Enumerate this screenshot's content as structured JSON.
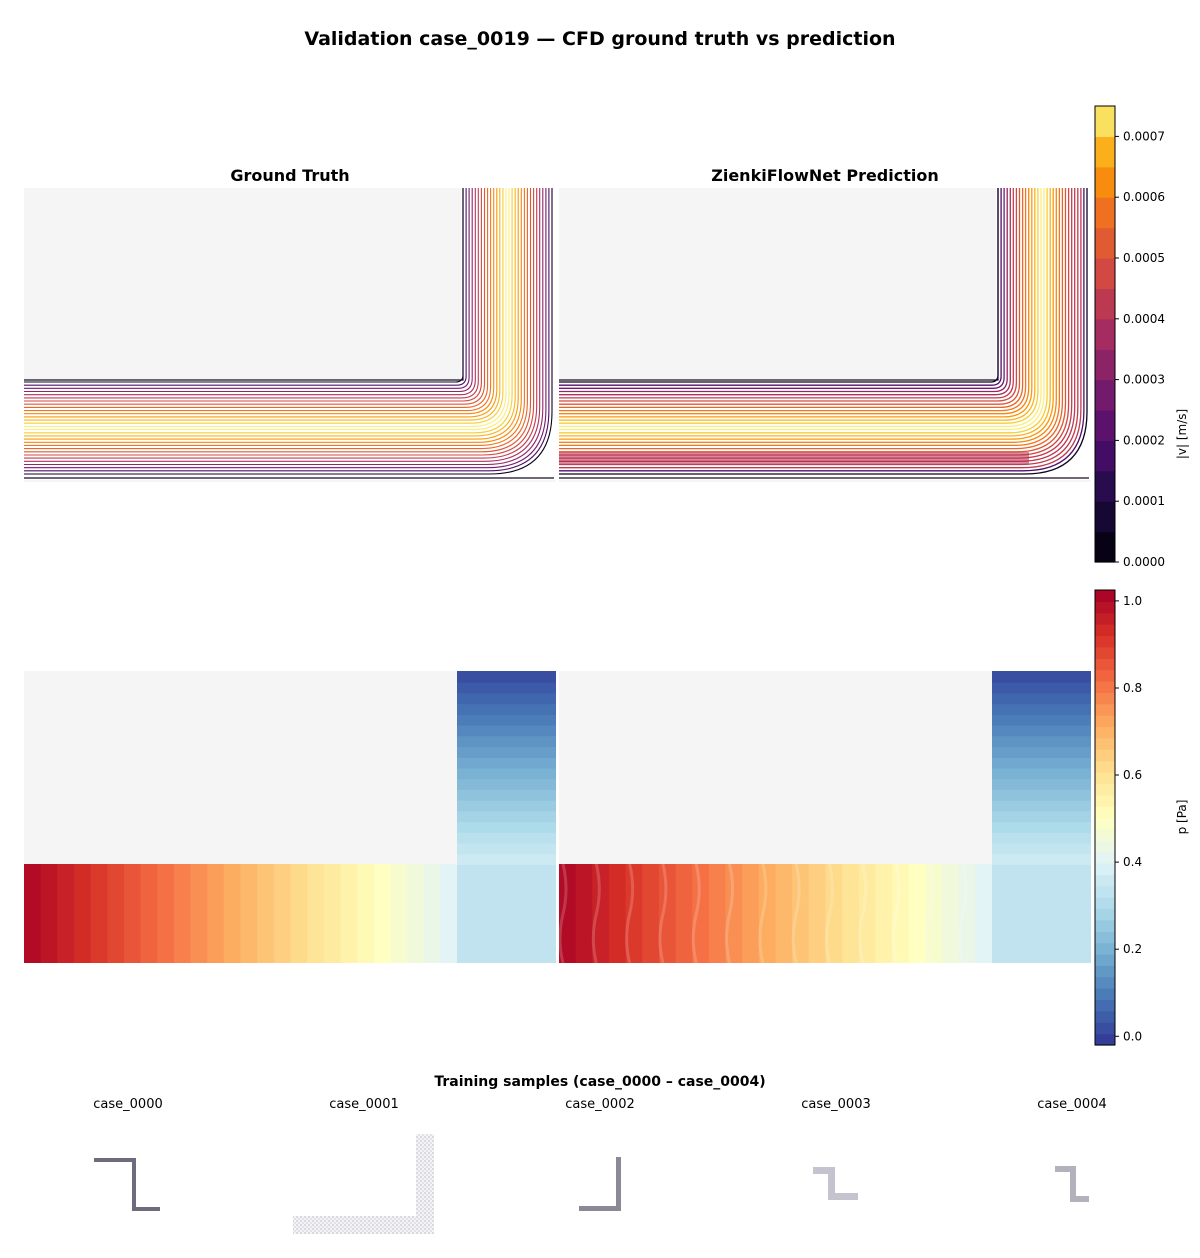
{
  "figure": {
    "title": "Validation case_0019 — CFD ground truth vs prediction"
  },
  "chart_data": [
    {
      "type": "streamplot",
      "panel": "velocity-ground-truth",
      "title": "Ground Truth",
      "geometry": "L-shaped channel: horizontal inlet from left, bend at right, outlet upward"
    },
    {
      "type": "streamplot",
      "panel": "velocity-prediction",
      "title": "ZienkiFlowNet Prediction",
      "geometry": "L-shaped channel: horizontal inlet from left, bend at right, outlet upward"
    },
    {
      "type": "heatmap",
      "panel": "pressure-ground-truth",
      "title": "",
      "geometry": "L-shaped channel",
      "note": "pressure falls from ~1.0 Pa at the left inlet to ~0.0 Pa at the top outlet"
    },
    {
      "type": "heatmap",
      "panel": "pressure-prediction",
      "title": "",
      "geometry": "L-shaped channel",
      "note": "pressure falls from ~1.0 Pa at the left inlet to ~0.0 Pa at the top outlet"
    },
    {
      "type": "colorbar",
      "label": "|v| [m/s]",
      "colormap": "inferno",
      "range": [
        0,
        0.00075
      ],
      "ticks": [
        "0.0000",
        "0.0001",
        "0.0002",
        "0.0003",
        "0.0004",
        "0.0005",
        "0.0006",
        "0.0007"
      ],
      "tick_values": [
        0,
        0.0001,
        0.0002,
        0.0003,
        0.0004,
        0.0005,
        0.0006,
        0.0007
      ]
    },
    {
      "type": "colorbar",
      "label": "p [Pa]",
      "colormap": "RdYlBu_r",
      "range": [
        -0.02,
        1.025
      ],
      "ticks": [
        "0.0",
        "0.2",
        "0.4",
        "0.6",
        "0.8",
        "1.0"
      ],
      "tick_values": [
        0.0,
        0.2,
        0.4,
        0.6,
        0.8,
        1.0
      ]
    }
  ],
  "training": {
    "title": "Training samples (case_0000 – case_0004)",
    "samples": [
      {
        "label": "case_0000",
        "shape": "z-step"
      },
      {
        "label": "case_0001",
        "shape": "l-wide"
      },
      {
        "label": "case_0002",
        "shape": "l-narrow"
      },
      {
        "label": "case_0003",
        "shape": "z-small"
      },
      {
        "label": "case_0004",
        "shape": "bracket"
      }
    ]
  },
  "colors": {
    "background_panel": "#f5f5f5",
    "streamline_low": "#000004",
    "streamline_high": "#fcffa4",
    "pressure_high": "#a50026",
    "pressure_low": "#313695"
  }
}
